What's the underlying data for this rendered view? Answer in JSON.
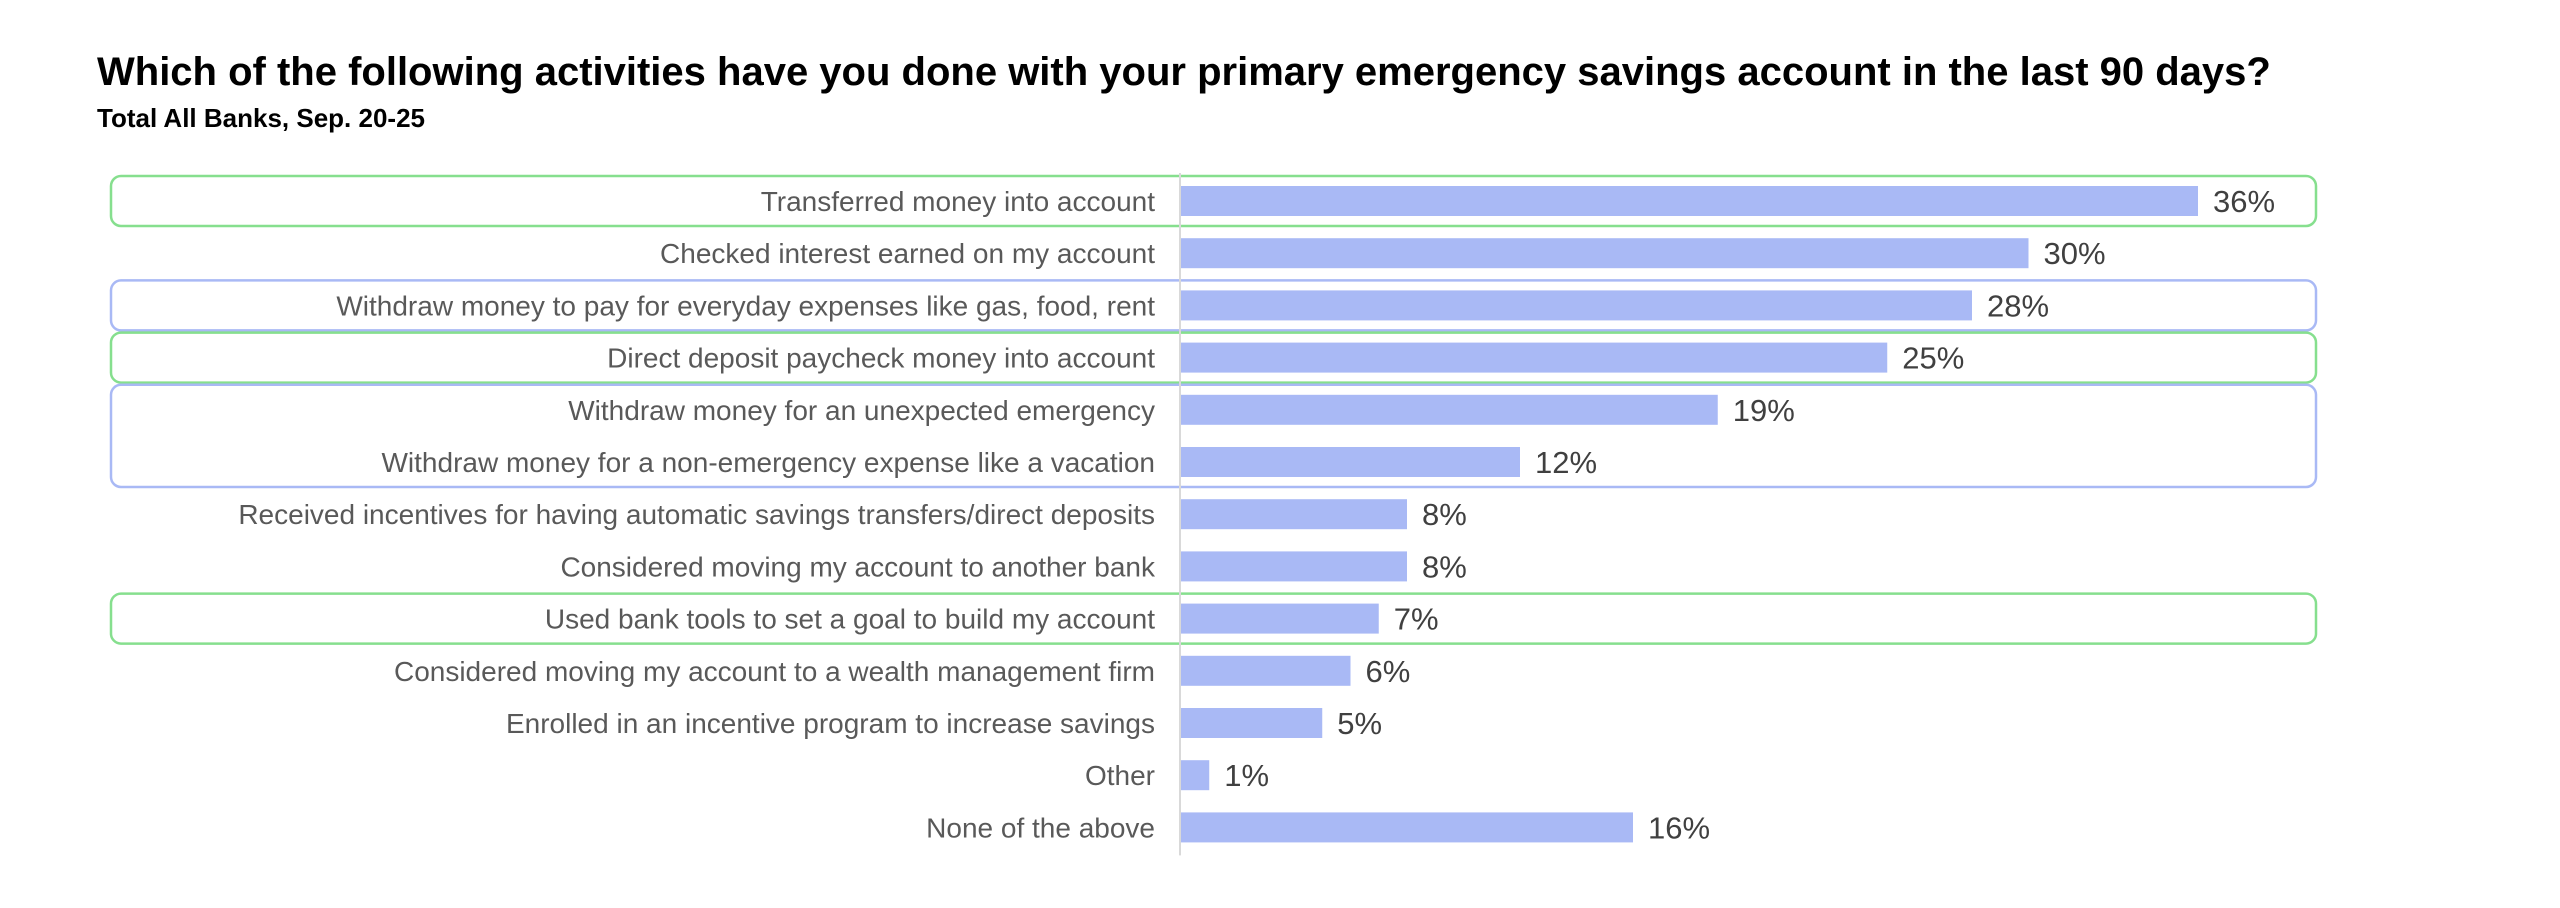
{
  "title": "Which of the following activities have you done with your primary emergency savings account in the last 90 days?",
  "subtitle": "Total All Banks, Sep. 20-25",
  "colors": {
    "bar": "#a9b9f5",
    "highlight_green": "#86df8e",
    "highlight_blue": "#a9b9f5",
    "axis": "#d9d9d9",
    "category_text": "#595959",
    "value_text": "#404040"
  },
  "chart_data": {
    "type": "bar",
    "orientation": "horizontal",
    "categories": [
      "Transferred money into account",
      "Checked interest earned on my account",
      "Withdraw money to pay for everyday expenses like gas, food, rent",
      "Direct deposit paycheck money into account",
      "Withdraw money for an unexpected emergency",
      "Withdraw money for a non-emergency expense like a vacation",
      "Received incentives for having automatic savings transfers/direct deposits",
      "Considered moving my account to another bank",
      "Used bank tools to set a goal to build my account",
      "Considered moving my account to a wealth management firm",
      "Enrolled in an incentive program to increase savings",
      "Other",
      "None of the above"
    ],
    "values": [
      36,
      30,
      28,
      25,
      19,
      12,
      8,
      8,
      7,
      6,
      5,
      1,
      16
    ],
    "value_labels": [
      "36%",
      "30%",
      "28%",
      "25%",
      "19%",
      "12%",
      "8%",
      "8%",
      "7%",
      "6%",
      "5%",
      "1%",
      "16%"
    ],
    "highlight_groups": [
      {
        "color": "green",
        "rows": [
          0
        ]
      },
      {
        "color": "blue",
        "rows": [
          2
        ]
      },
      {
        "color": "green",
        "rows": [
          3
        ]
      },
      {
        "color": "blue",
        "rows": [
          4,
          5
        ]
      },
      {
        "color": "green",
        "rows": [
          8
        ]
      }
    ],
    "grid": false,
    "legend": "none"
  }
}
